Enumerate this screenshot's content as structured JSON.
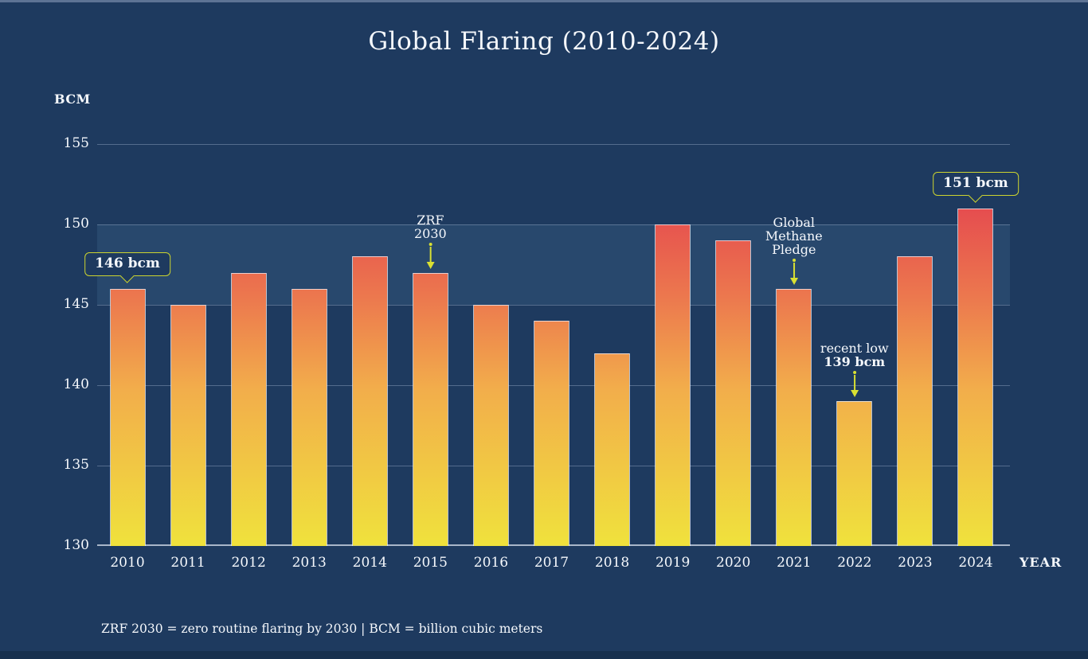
{
  "footnote": "ZRF 2030 = zero routine flaring by 2030  |  BCM = billion cubic meters",
  "colors": {
    "background": "#1e3a5f",
    "top_strip": "#5d7394",
    "bottom_strip": "#17304e",
    "highlight_band": "#28486d",
    "gridline": "#6b7f9e",
    "baseline": "#a9b6c9",
    "text": "#f5f8fc",
    "callout_border": "#ccd42f",
    "arrow": "#d9e032",
    "bar_gradient_bottom": "#f0e23c",
    "bar_gradient_mid1": "#f2ae4b",
    "bar_gradient_mid2": "#ec784e",
    "bar_gradient_top": "#e5494f"
  },
  "chart_data": {
    "type": "bar",
    "title": "Global Flaring (2010-2024)",
    "xlabel": "YEAR",
    "ylabel": "BCM",
    "unit": "bcm",
    "categories": [
      "2010",
      "2011",
      "2012",
      "2013",
      "2014",
      "2015",
      "2016",
      "2017",
      "2018",
      "2019",
      "2020",
      "2021",
      "2022",
      "2023",
      "2024"
    ],
    "values": [
      146,
      145,
      147,
      146,
      148,
      147,
      145,
      144,
      142,
      150,
      149,
      146,
      139,
      148,
      151
    ],
    "ylim": [
      130,
      155
    ],
    "y_ticks": [
      155,
      150,
      145,
      140,
      135,
      130
    ],
    "grid": true,
    "legend": null,
    "highlight_band": {
      "from": 145,
      "to": 150
    },
    "annotations": [
      {
        "type": "callout",
        "year": "2010",
        "label": "146 bcm"
      },
      {
        "type": "arrow",
        "year": "2015",
        "lines": [
          {
            "text": "ZRF",
            "bold": false
          },
          {
            "text": "2030",
            "bold": false
          }
        ]
      },
      {
        "type": "arrow",
        "year": "2021",
        "lines": [
          {
            "text": "Global",
            "bold": false
          },
          {
            "text": "Methane",
            "bold": false
          },
          {
            "text": "Pledge",
            "bold": false
          }
        ]
      },
      {
        "type": "arrow",
        "year": "2022",
        "lines": [
          {
            "text": "recent low",
            "bold": false
          },
          {
            "text": "139 bcm",
            "bold": true
          }
        ]
      },
      {
        "type": "callout",
        "year": "2024",
        "label": "151 bcm"
      }
    ]
  }
}
